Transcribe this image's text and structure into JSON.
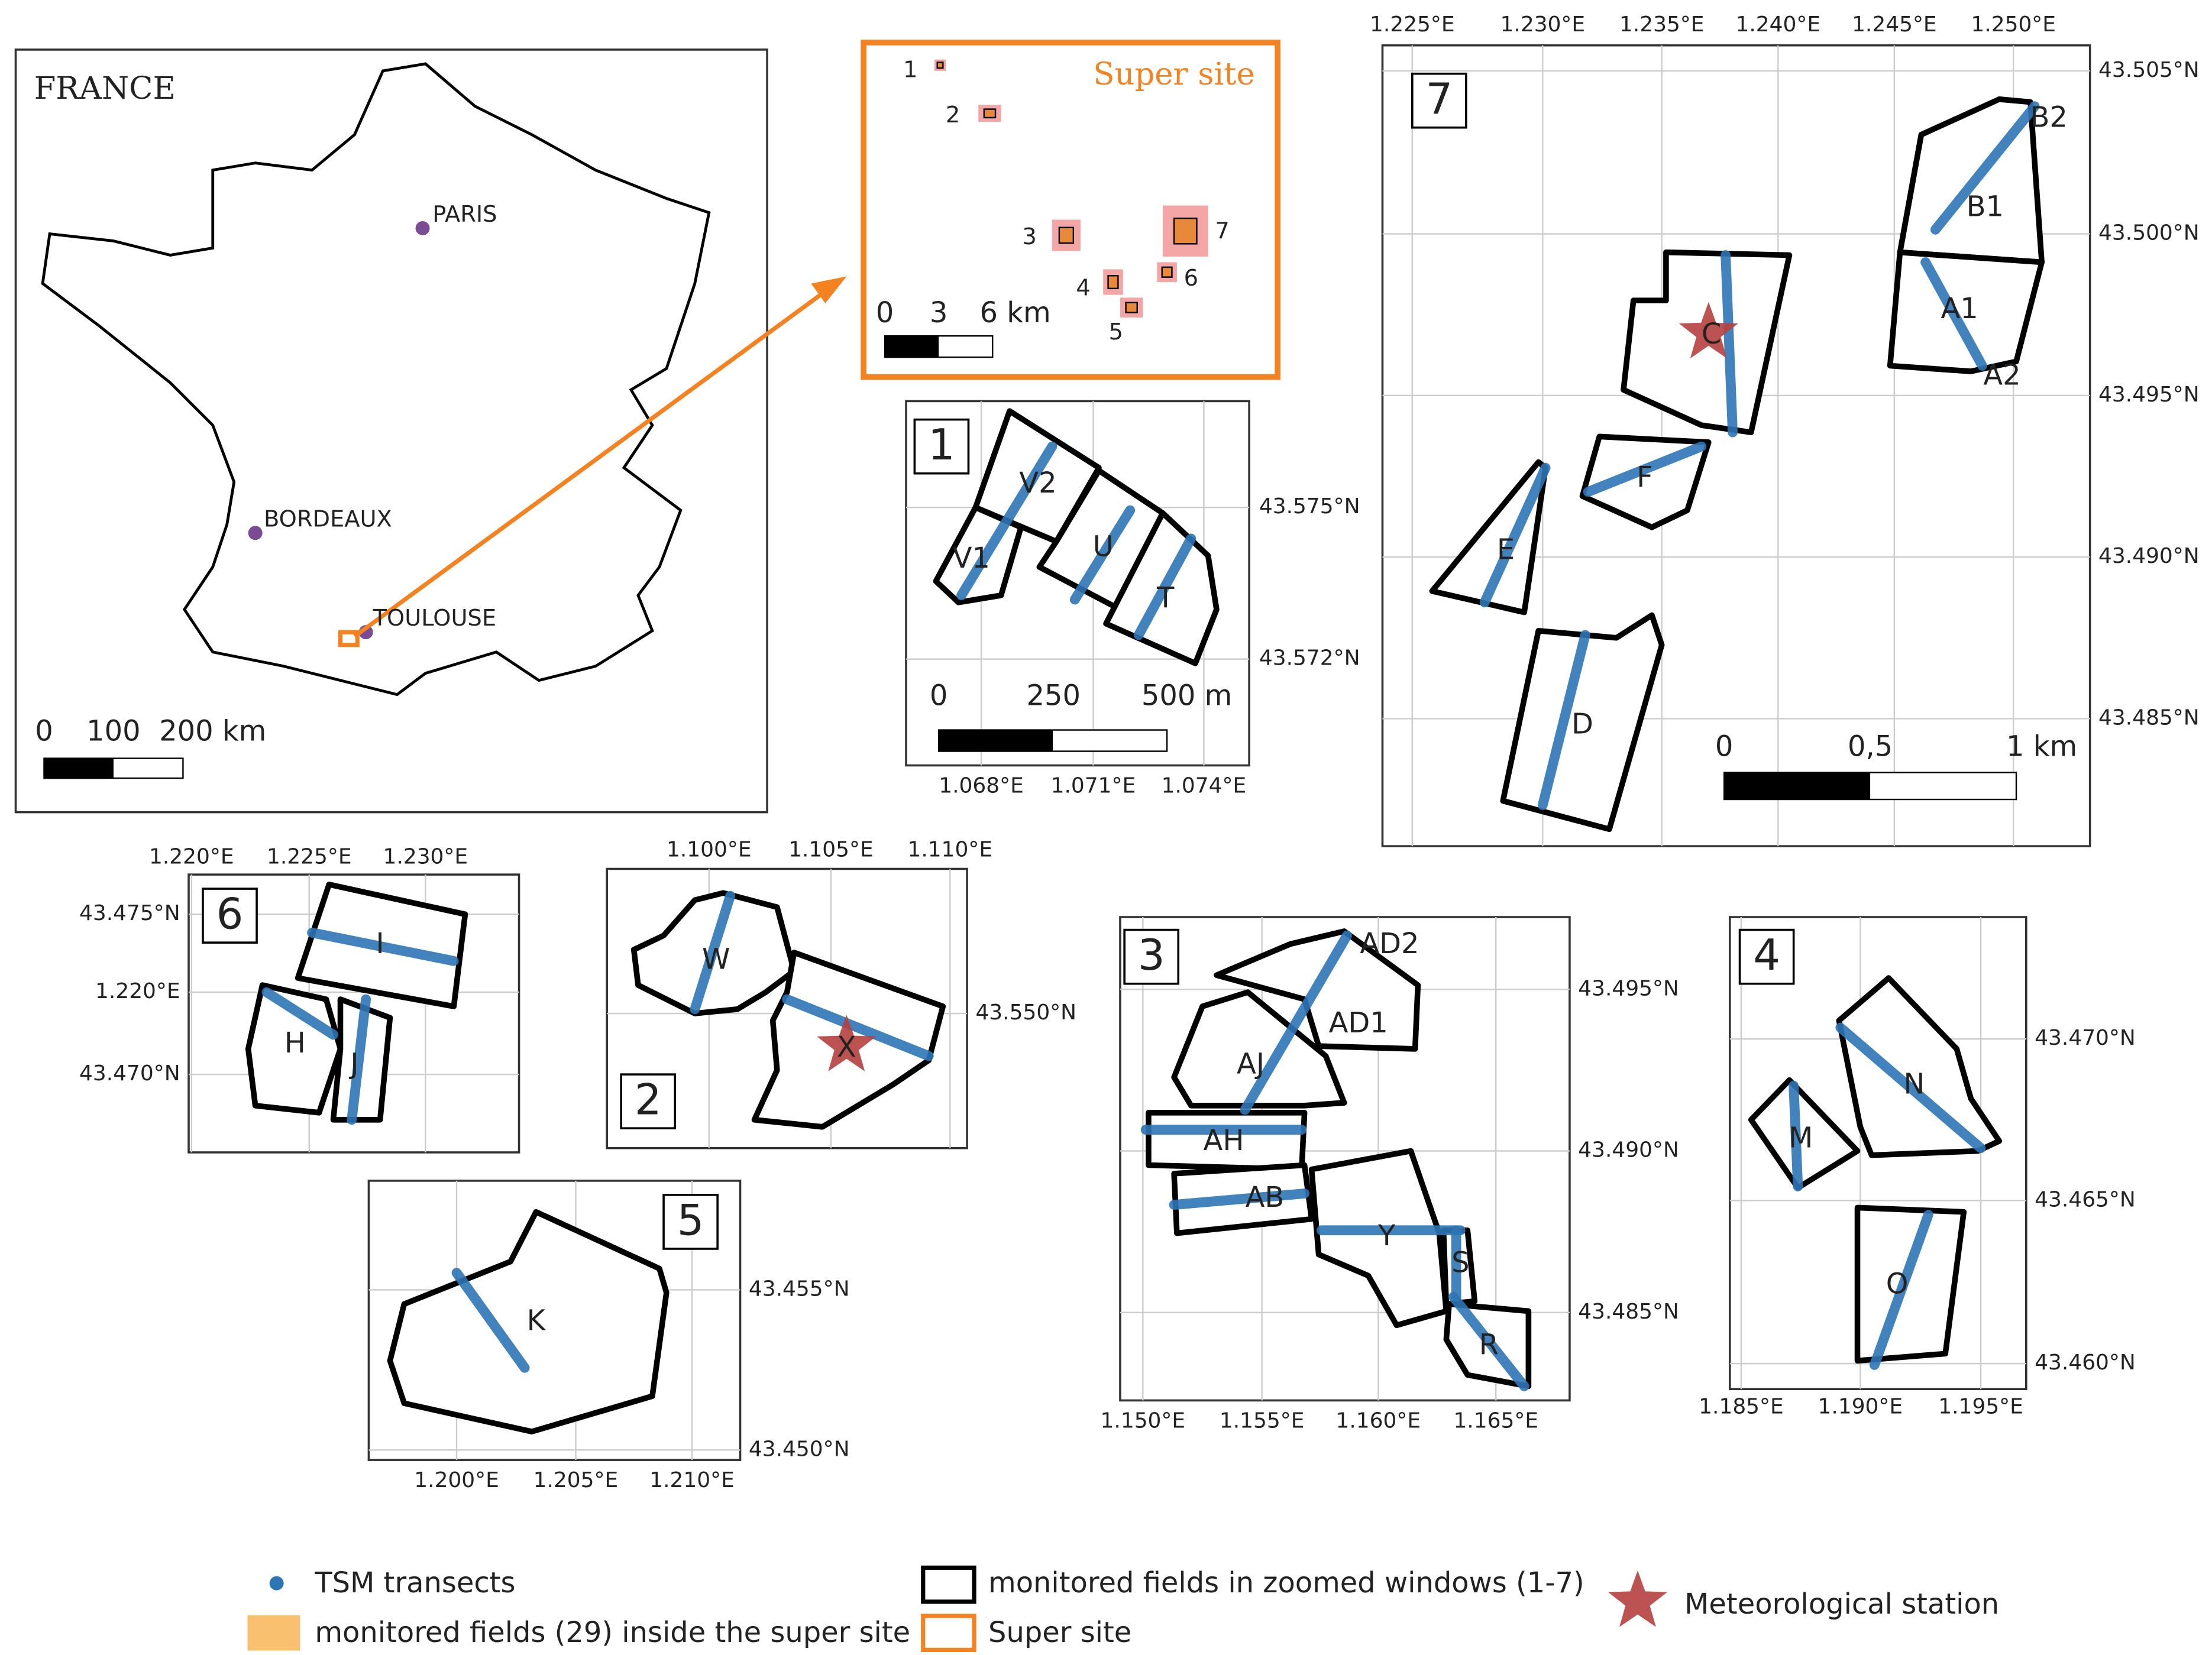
{
  "france_map": {
    "title": "FRANCE",
    "cities": [
      "PARIS",
      "BORDEAUX",
      "TOULOUSE"
    ],
    "scale_labels": [
      "0",
      "100",
      "200 km"
    ]
  },
  "super_site": {
    "title": "Super site",
    "site_numbers": [
      "1",
      "2",
      "3",
      "4",
      "5",
      "6",
      "7"
    ],
    "scale_labels": [
      "0",
      "3",
      "6 km"
    ]
  },
  "windows": [
    {
      "number": "1",
      "fields": [
        "V2",
        "V1",
        "U",
        "T"
      ],
      "x_ticks": [
        "1.068°E",
        "1.071°E",
        "1.074°E"
      ],
      "y_ticks": [
        "43.575°N",
        "43.572°N"
      ],
      "scale_labels": [
        "0",
        "250",
        "500 m"
      ]
    },
    {
      "number": "2",
      "fields": [
        "W",
        "X"
      ],
      "x_ticks": [
        "1.100°E",
        "1.105°E",
        "1.110°E"
      ],
      "y_ticks": [
        "43.550°N"
      ]
    },
    {
      "number": "3",
      "fields": [
        "AD2",
        "AD1",
        "AJ",
        "AH",
        "AB",
        "Y",
        "S",
        "R"
      ],
      "x_ticks": [
        "1.150°E",
        "1.155°E",
        "1.160°E",
        "1.165°E"
      ],
      "y_ticks": [
        "43.495°N",
        "43.490°N",
        "43.485°N"
      ]
    },
    {
      "number": "4",
      "fields": [
        "N",
        "M",
        "O"
      ],
      "x_ticks": [
        "1.185°E",
        "1.190°E",
        "1.195°E"
      ],
      "y_ticks": [
        "43.470°N",
        "43.465°N",
        "43.460°N"
      ]
    },
    {
      "number": "5",
      "fields": [
        "K"
      ],
      "x_ticks": [
        "1.200°E",
        "1.205°E",
        "1.210°E"
      ],
      "y_ticks": [
        "43.455°N",
        "43.450°N"
      ]
    },
    {
      "number": "6",
      "fields": [
        "I",
        "H",
        "J"
      ],
      "x_ticks": [
        "1.220°E",
        "1.225°E",
        "1.230°E"
      ],
      "y_ticks": [
        "43.475°N",
        "1.220°E",
        "43.470°N"
      ]
    },
    {
      "number": "7",
      "fields": [
        "B2",
        "B1",
        "A1",
        "A2",
        "C",
        "F",
        "E",
        "D"
      ],
      "x_ticks": [
        "1.225°E",
        "1.230°E",
        "1.235°E",
        "1.240°E",
        "1.245°E",
        "1.250°E"
      ],
      "y_ticks": [
        "43.505°N",
        "43.500°N",
        "43.495°N",
        "43.490°N",
        "43.485°N"
      ],
      "scale_labels": [
        "0",
        "0,5",
        "1 km"
      ]
    }
  ],
  "legend": [
    "TSM transects",
    "monitored fields (29) inside the super site",
    "monitored fields in zoomed windows (1-7)",
    "Super site",
    "Meteorological station"
  ]
}
